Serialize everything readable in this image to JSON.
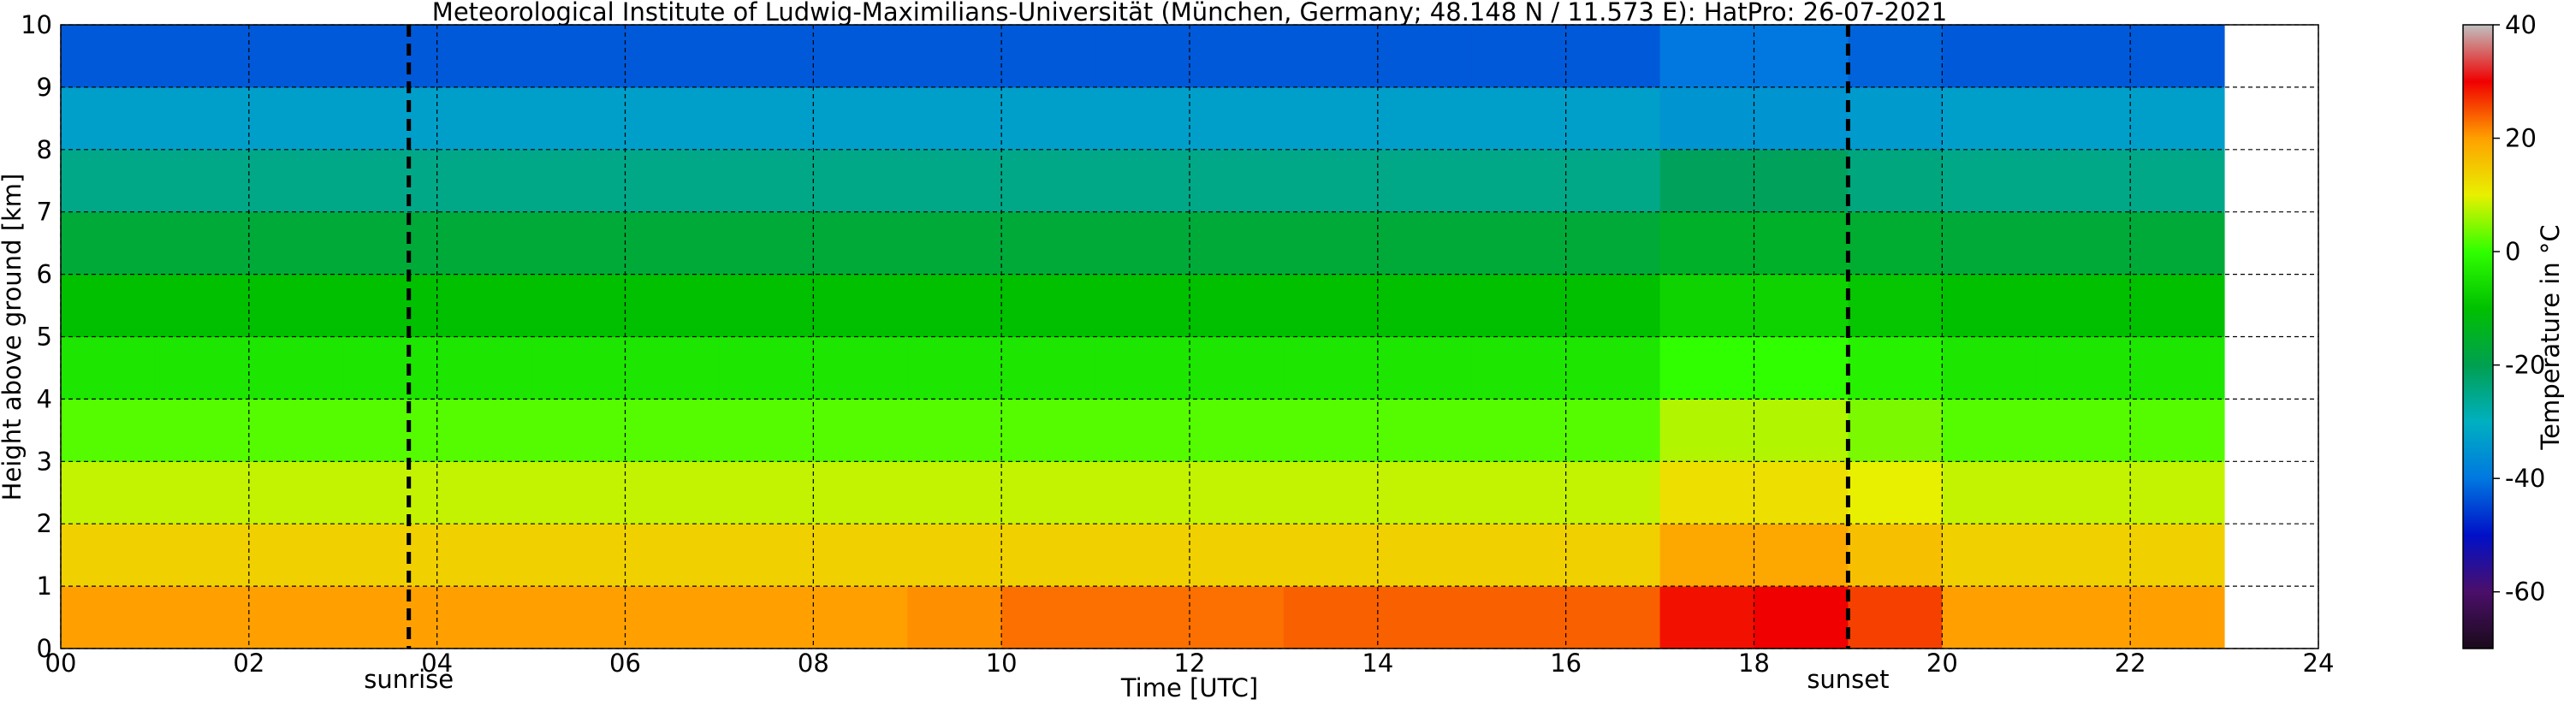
{
  "chart_data": {
    "type": "heatmap",
    "title": "Meteorological Institute of Ludwig-Maximilians-Universität (München, Germany; 48.148 N / 11.573 E):    HatPro: 26-07-2021",
    "xlabel": "Time [UTC]",
    "ylabel": "Height above ground [km]",
    "colorbar_label": "Temperature in °C",
    "xlim": [
      0,
      24
    ],
    "ylim": [
      0,
      10
    ],
    "xticks": [
      {
        "value": 0,
        "label": "00"
      },
      {
        "value": 2,
        "label": "02"
      },
      {
        "value": 4,
        "label": "04"
      },
      {
        "value": 6,
        "label": "06"
      },
      {
        "value": 8,
        "label": "08"
      },
      10,
      12,
      14,
      16,
      18,
      20,
      22,
      24
    ],
    "yticks": [
      0,
      1,
      2,
      3,
      4,
      5,
      6,
      7,
      8,
      9,
      10
    ],
    "clim": [
      -70,
      40
    ],
    "cticks": [
      -60,
      -40,
      -20,
      0,
      20,
      40
    ],
    "colormap": [
      "#1a0a1a",
      "#4b0f6a",
      "#0010c8",
      "#0078e0",
      "#00b0c0",
      "#00a050",
      "#00c000",
      "#30ff00",
      "#e8f000",
      "#ffa000",
      "#f00000",
      "#c0c0c0"
    ],
    "grid": true,
    "x_edges": [
      0,
      1,
      2,
      3,
      4,
      5,
      6,
      7,
      8,
      9,
      10,
      11,
      12,
      13,
      14,
      15,
      16,
      17,
      18,
      19,
      20,
      21,
      22,
      23
    ],
    "y_edges": [
      0,
      1,
      2,
      3,
      4,
      5,
      6,
      7,
      8,
      9,
      10
    ],
    "z": [
      [
        20,
        20,
        20,
        20,
        20,
        20,
        20,
        20,
        20,
        21,
        23,
        23,
        23,
        24,
        24,
        24,
        24,
        29,
        30,
        26,
        20,
        20,
        20
      ],
      [
        14,
        14,
        14,
        14,
        14,
        14,
        14,
        14,
        14,
        14,
        14,
        14,
        14,
        14,
        14,
        14,
        14,
        19,
        19,
        16,
        14,
        14,
        14
      ],
      [
        8,
        8,
        8,
        8,
        8,
        8,
        8,
        8,
        8,
        8,
        8,
        8,
        8,
        8,
        8,
        8,
        8,
        12,
        12,
        10,
        8,
        8,
        8
      ],
      [
        2,
        2,
        2,
        2,
        2,
        2,
        2,
        2,
        2,
        2,
        2,
        2,
        2,
        2,
        2,
        2,
        2,
        7,
        7,
        4,
        2,
        2,
        2
      ],
      [
        -4,
        -4,
        -4,
        -4,
        -4,
        -4,
        -4,
        -4,
        -4,
        -4,
        -4,
        -4,
        -4,
        -4,
        -4,
        -4,
        -4,
        0,
        0,
        -2,
        -4,
        -4,
        -4
      ],
      [
        -10,
        -10,
        -10,
        -10,
        -10,
        -10,
        -10,
        -10,
        -10,
        -10,
        -10,
        -10,
        -10,
        -10,
        -10,
        -10,
        -10,
        -7,
        -7,
        -9,
        -10,
        -10,
        -10
      ],
      [
        -17,
        -17,
        -17,
        -17,
        -17,
        -17,
        -17,
        -17,
        -17,
        -17,
        -17,
        -17,
        -17,
        -17,
        -17,
        -17,
        -17,
        -15,
        -15,
        -16,
        -17,
        -17,
        -17
      ],
      [
        -25,
        -25,
        -25,
        -25,
        -25,
        -25,
        -25,
        -25,
        -25,
        -25,
        -25,
        -25,
        -25,
        -25,
        -25,
        -25,
        -25,
        -21,
        -21,
        -24,
        -25,
        -25,
        -25
      ],
      [
        -33,
        -33,
        -33,
        -33,
        -33,
        -33,
        -33,
        -33,
        -33,
        -33,
        -33,
        -33,
        -33,
        -33,
        -33,
        -33,
        -33,
        -35,
        -35,
        -34,
        -33,
        -33,
        -33
      ],
      [
        -43,
        -43,
        -43,
        -43,
        -43,
        -43,
        -43,
        -43,
        -43,
        -43,
        -43,
        -43,
        -43,
        -43,
        -43,
        -43,
        -43,
        -40,
        -40,
        -42,
        -43,
        -43,
        -43
      ]
    ],
    "annotations": [
      {
        "text": "sunrise",
        "x": 3.7
      },
      {
        "text": "sunset",
        "x": 19.0
      }
    ]
  }
}
